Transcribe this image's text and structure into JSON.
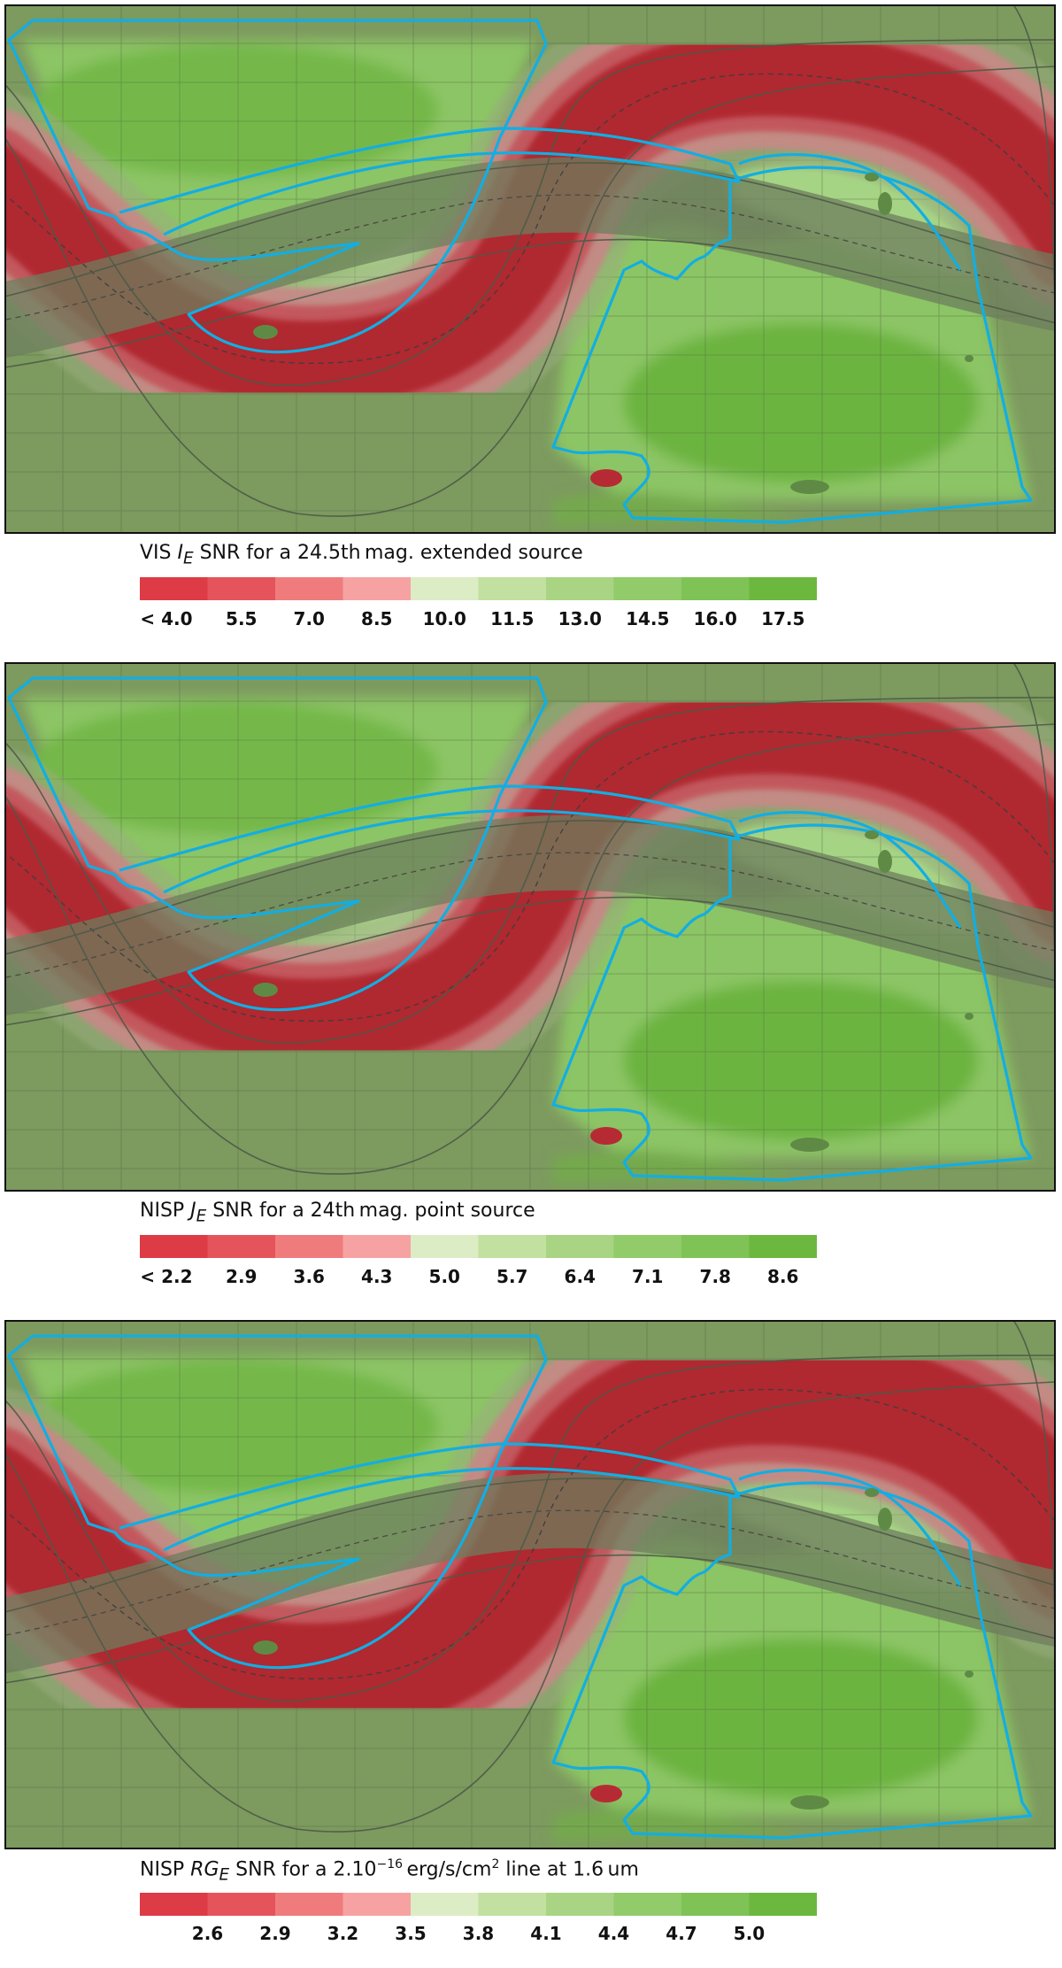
{
  "chart_data": [
    {
      "type": "heatmap",
      "title": "VIS I_E SNR for a 24.5th mag. extended source",
      "title_parts": {
        "pre": "VIS ",
        "sym": "I",
        "sub": "E",
        "post": " SNR for a 24.5th mag. extended source"
      },
      "colorbar": {
        "tick_labels": [
          "< 4.0",
          "5.5",
          "7.0",
          "8.5",
          "10.0",
          "11.5",
          "13.0",
          "14.5",
          "16.0",
          "17.5"
        ],
        "colors": [
          "#dd3b45",
          "#e5545b",
          "#ef7b7d",
          "#f6a2a3",
          "#dcecc4",
          "#c2e0a0",
          "#a8d484",
          "#92cb6a",
          "#7fc256",
          "#6cb73e"
        ]
      },
      "grid": true,
      "red_strip_offset": 0
    },
    {
      "type": "heatmap",
      "title": "NISP J_E SNR for a 24th mag. point source",
      "title_parts": {
        "pre": "NISP ",
        "sym": "J",
        "sub": "E",
        "post": " SNR for a 24th mag. point source"
      },
      "colorbar": {
        "tick_labels": [
          "< 2.2",
          "2.9",
          "3.6",
          "4.3",
          "5.0",
          "5.7",
          "6.4",
          "7.1",
          "7.8",
          "8.6"
        ],
        "colors": [
          "#dd3b45",
          "#e5545b",
          "#ef7b7d",
          "#f6a2a3",
          "#dcecc4",
          "#c2e0a0",
          "#a8d484",
          "#92cb6a",
          "#7fc256",
          "#6cb73e"
        ]
      },
      "grid": true,
      "red_strip_offset": 0
    },
    {
      "type": "heatmap",
      "title": "NISP RG_E SNR for a 2.10^-16 erg/s/cm^2 line at 1.6 um",
      "title_parts": {
        "pre": "NISP ",
        "sym": "RG",
        "sub": "E",
        "mid": " SNR for a 2.10",
        "sup1": "−16",
        "mid2": " erg/s/cm",
        "sup2": "2",
        "post": " line at 1.6 um"
      },
      "colorbar": {
        "tick_labels": [
          "2.6",
          "2.9",
          "3.2",
          "3.5",
          "3.8",
          "4.1",
          "4.4",
          "4.7",
          "5.0"
        ],
        "colors": [
          "#dd3b45",
          "#e5545b",
          "#ef7b7d",
          "#f6a2a3",
          "#dcecc4",
          "#c2e0a0",
          "#a8d484",
          "#92cb6a",
          "#7fc256",
          "#6cb73e"
        ]
      },
      "grid": true,
      "red_strip_offset": 1
    }
  ]
}
